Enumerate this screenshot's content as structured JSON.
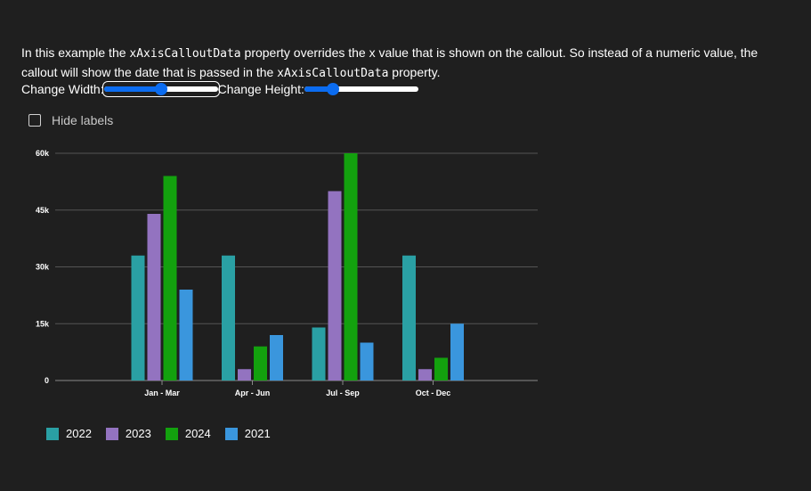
{
  "description": {
    "part1": "In this example the ",
    "code1": "xAxisCalloutData",
    "part2": " property overrides the x value that is shown on the callout. So instead of a numeric value, the callout will show the date that is passed in the ",
    "code2": "xAxisCalloutData",
    "part3": " property."
  },
  "controls": {
    "width_label": "Change Width:",
    "width_value": 0.5,
    "height_label": "Change Height:",
    "height_value": 0.22
  },
  "hide_labels": {
    "label": "Hide labels",
    "checked": false
  },
  "chart_data": {
    "type": "bar",
    "categories": [
      "Jan - Mar",
      "Apr - Jun",
      "Jul - Sep",
      "Oct - Dec"
    ],
    "series": [
      {
        "name": "2022",
        "color": "#2aa0a4",
        "values": [
          33000,
          33000,
          14000,
          33000
        ]
      },
      {
        "name": "2023",
        "color": "#9373c0",
        "values": [
          44000,
          3000,
          50000,
          3000
        ]
      },
      {
        "name": "2024",
        "color": "#13a10e",
        "values": [
          54000,
          9000,
          60000,
          6000
        ]
      },
      {
        "name": "2021",
        "color": "#3a96dd",
        "values": [
          24000,
          12000,
          10000,
          15000
        ]
      }
    ],
    "y_ticks": [
      0,
      15000,
      30000,
      45000,
      60000
    ],
    "y_tick_labels": [
      "0",
      "15k",
      "30k",
      "45k",
      "60k"
    ],
    "ylim": [
      0,
      60000
    ],
    "grid": true,
    "legend_position": "bottom-left"
  }
}
